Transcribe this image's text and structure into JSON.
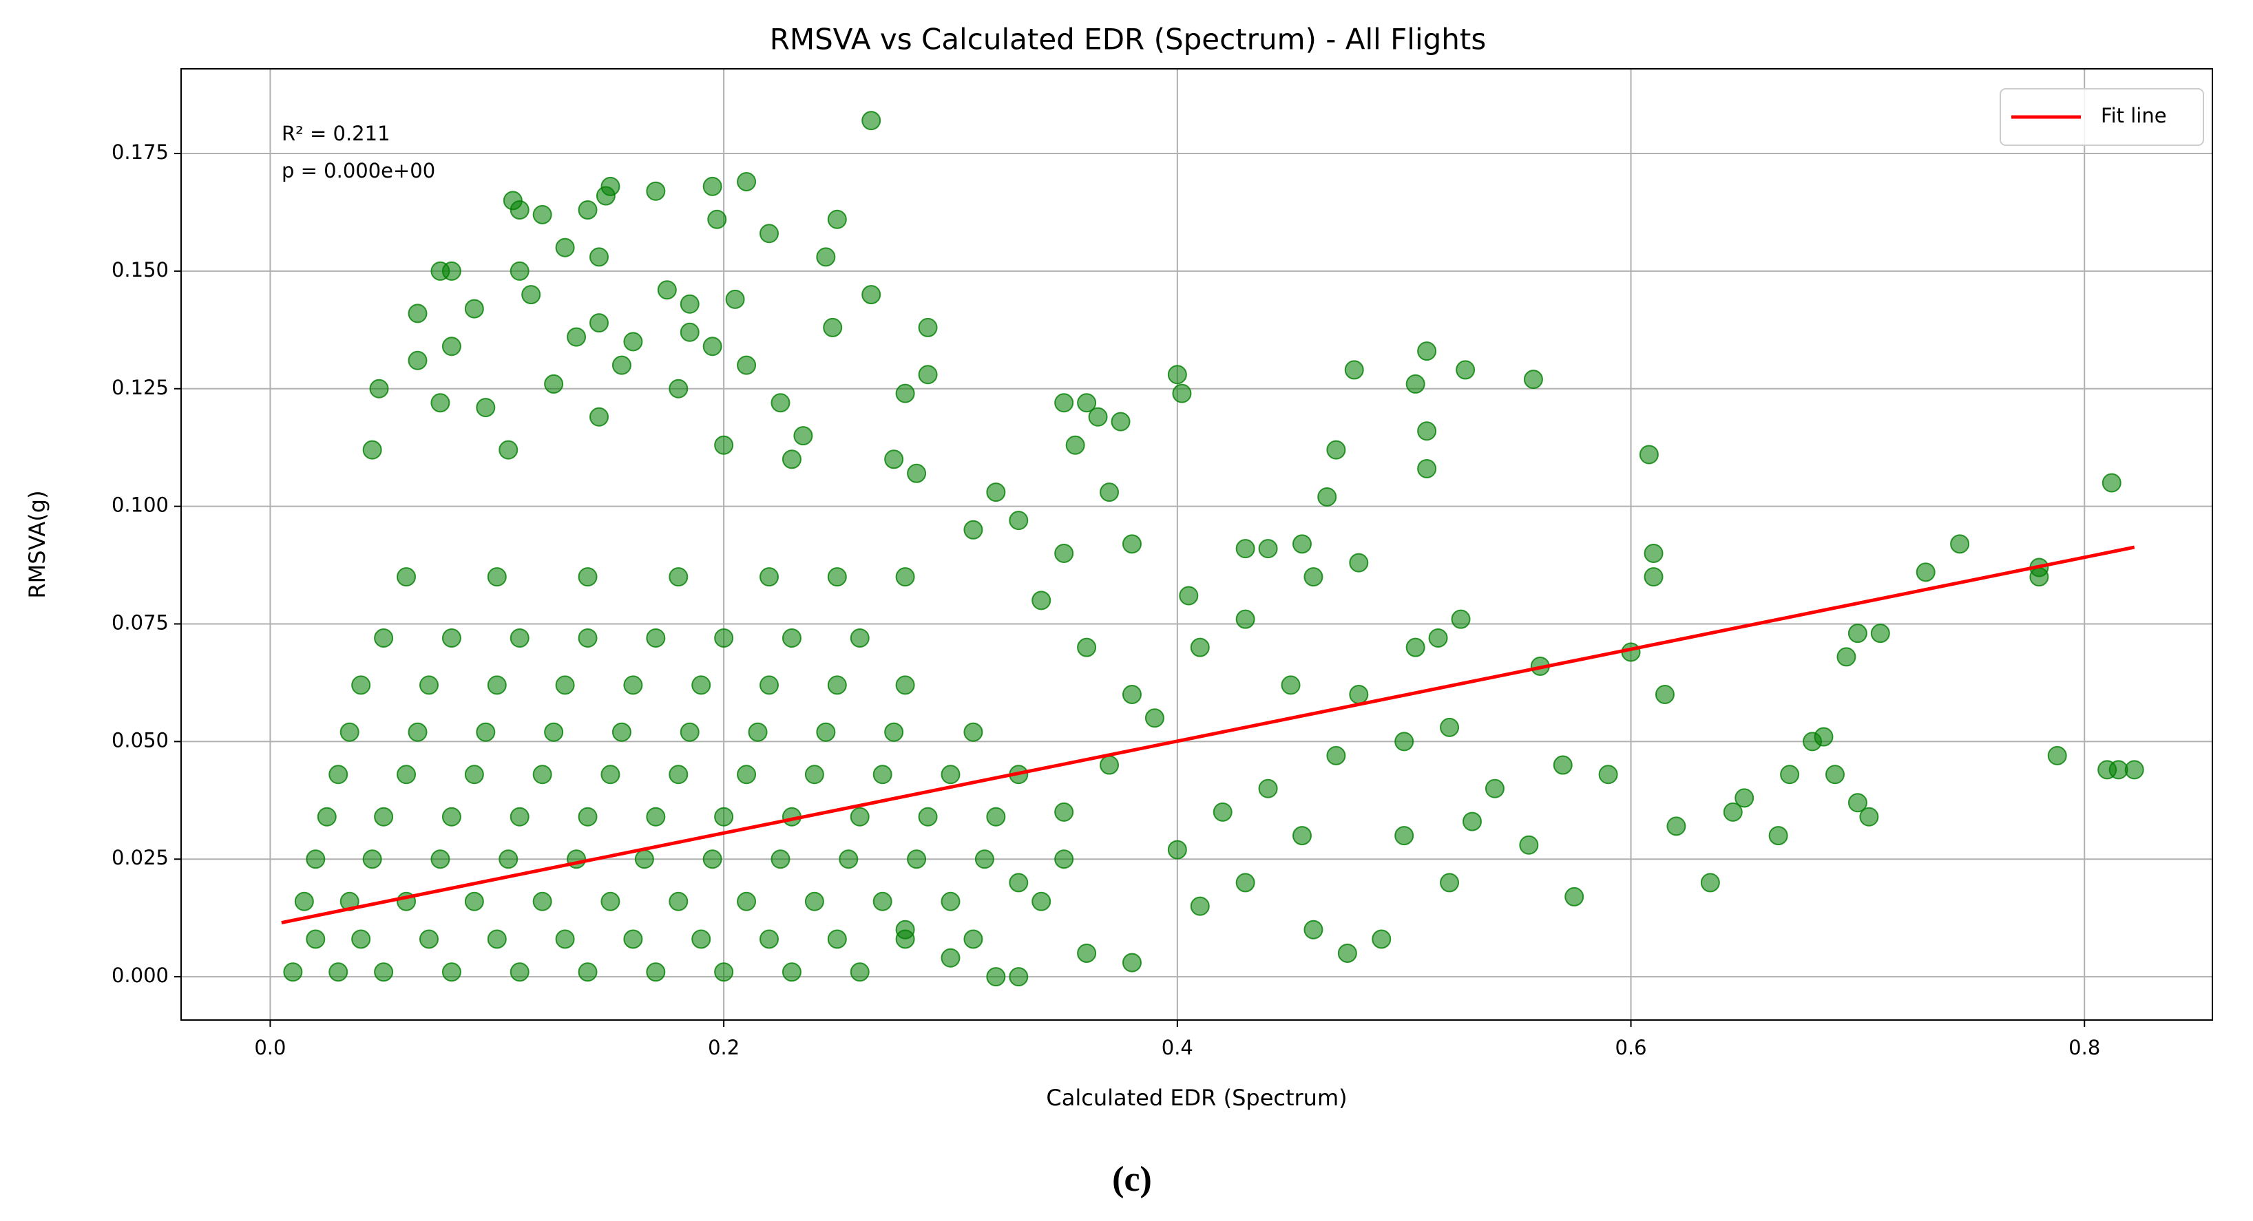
{
  "chart_data": {
    "type": "scatter",
    "title": "RMSVA vs Calculated EDR (Spectrum) - All Flights",
    "xlabel": "Calculated EDR (Spectrum)",
    "ylabel": "RMSVA(g)",
    "annotations": [
      "R² = 0.211",
      "p = 0.000e+00"
    ],
    "xlim": [
      -0.0393,
      0.8564
    ],
    "ylim": [
      -0.0092,
      0.193
    ],
    "xticks": [
      {
        "value": 0,
        "label": "0.0"
      },
      0.2,
      0.4,
      0.6,
      0.8
    ],
    "yticks": [
      {
        "value": 0,
        "label": "0.000"
      },
      0.025,
      {
        "value": 0.05,
        "label": "0.050"
      },
      0.075,
      {
        "value": 0.1,
        "label": "0.100"
      },
      0.125,
      {
        "value": 0.15,
        "label": "0.150"
      },
      0.175
    ],
    "grid": true,
    "legend": "upper right",
    "series": [
      {
        "type": "scatter",
        "color": "green",
        "x": [
          0.265,
          0.107,
          0.11,
          0.12,
          0.15,
          0.148,
          0.17,
          0.195,
          0.21,
          0.197,
          0.22,
          0.25,
          0.14,
          0.13,
          0.145,
          0.245,
          0.265,
          0.175,
          0.11,
          0.075,
          0.08,
          0.115,
          0.09,
          0.065,
          0.185,
          0.205,
          0.29,
          0.248,
          0.145,
          0.135,
          0.16,
          0.185,
          0.195,
          0.08,
          0.065,
          0.155,
          0.21,
          0.29,
          0.048,
          0.125,
          0.18,
          0.075,
          0.145,
          0.28,
          0.225,
          0.095,
          0.105,
          0.045,
          0.2,
          0.235,
          0.23,
          0.275,
          0.285,
          0.32,
          0.36,
          0.35,
          0.365,
          0.355,
          0.375,
          0.37,
          0.4,
          0.402,
          0.478,
          0.505,
          0.51,
          0.527,
          0.557,
          0.51,
          0.47,
          0.51,
          0.608,
          0.466,
          0.61,
          0.61,
          0.812,
          0.745,
          0.78,
          0.78,
          0.73,
          0.788,
          0.815,
          0.822,
          0.81,
          0.7,
          0.71,
          0.695,
          0.685,
          0.68,
          0.67,
          0.69,
          0.7,
          0.705,
          0.665,
          0.635,
          0.65,
          0.645,
          0.62,
          0.615,
          0.6,
          0.59,
          0.575,
          0.56,
          0.555,
          0.52,
          0.515,
          0.525,
          0.505,
          0.48,
          0.46,
          0.43,
          0.44,
          0.455,
          0.43,
          0.41,
          0.405,
          0.45,
          0.48,
          0.5,
          0.47,
          0.44,
          0.42,
          0.4,
          0.43,
          0.46,
          0.475,
          0.49,
          0.52,
          0.54,
          0.57,
          0.53,
          0.5,
          0.455,
          0.41,
          0.39,
          0.38,
          0.36,
          0.35,
          0.33,
          0.31,
          0.38,
          0.34,
          0.37,
          0.35,
          0.33,
          0.32,
          0.33,
          0.3,
          0.28,
          0.36,
          0.38,
          0.01,
          0.03,
          0.05,
          0.08,
          0.11,
          0.14,
          0.17,
          0.2,
          0.23,
          0.26,
          0.02,
          0.04,
          0.07,
          0.1,
          0.13,
          0.16,
          0.19,
          0.22,
          0.25,
          0.28,
          0.31,
          0.015,
          0.035,
          0.06,
          0.09,
          0.12,
          0.15,
          0.18,
          0.21,
          0.24,
          0.27,
          0.3,
          0.34,
          0.02,
          0.045,
          0.075,
          0.105,
          0.135,
          0.165,
          0.195,
          0.225,
          0.255,
          0.285,
          0.315,
          0.35,
          0.025,
          0.05,
          0.08,
          0.11,
          0.14,
          0.17,
          0.2,
          0.23,
          0.26,
          0.29,
          0.32,
          0.03,
          0.06,
          0.09,
          0.12,
          0.15,
          0.18,
          0.21,
          0.24,
          0.27,
          0.3,
          0.33,
          0.035,
          0.065,
          0.095,
          0.125,
          0.155,
          0.185,
          0.215,
          0.245,
          0.275,
          0.31,
          0.04,
          0.07,
          0.1,
          0.13,
          0.16,
          0.19,
          0.22,
          0.25,
          0.28,
          0.05,
          0.08,
          0.11,
          0.14,
          0.17,
          0.2,
          0.23,
          0.26,
          0.06,
          0.1,
          0.14,
          0.18,
          0.22,
          0.25,
          0.28
        ],
        "values": [
          0.182,
          0.165,
          0.163,
          0.162,
          0.168,
          0.166,
          0.167,
          0.168,
          0.169,
          0.161,
          0.158,
          0.161,
          0.163,
          0.155,
          0.153,
          0.153,
          0.145,
          0.146,
          0.15,
          0.15,
          0.15,
          0.145,
          0.142,
          0.141,
          0.143,
          0.144,
          0.138,
          0.138,
          0.139,
          0.136,
          0.135,
          0.137,
          0.134,
          0.134,
          0.131,
          0.13,
          0.13,
          0.128,
          0.125,
          0.126,
          0.125,
          0.122,
          0.119,
          0.124,
          0.122,
          0.121,
          0.112,
          0.112,
          0.113,
          0.115,
          0.11,
          0.11,
          0.107,
          0.103,
          0.122,
          0.122,
          0.119,
          0.113,
          0.118,
          0.103,
          0.128,
          0.124,
          0.129,
          0.126,
          0.133,
          0.129,
          0.127,
          0.116,
          0.112,
          0.108,
          0.111,
          0.102,
          0.09,
          0.085,
          0.105,
          0.092,
          0.087,
          0.085,
          0.086,
          0.047,
          0.044,
          0.044,
          0.044,
          0.073,
          0.073,
          0.068,
          0.051,
          0.05,
          0.043,
          0.043,
          0.037,
          0.034,
          0.03,
          0.02,
          0.038,
          0.035,
          0.032,
          0.06,
          0.069,
          0.043,
          0.017,
          0.066,
          0.028,
          0.053,
          0.072,
          0.076,
          0.07,
          0.088,
          0.085,
          0.091,
          0.091,
          0.092,
          0.076,
          0.07,
          0.081,
          0.062,
          0.06,
          0.05,
          0.047,
          0.04,
          0.035,
          0.027,
          0.02,
          0.01,
          0.005,
          0.008,
          0.02,
          0.04,
          0.045,
          0.033,
          0.03,
          0.03,
          0.015,
          0.055,
          0.06,
          0.07,
          0.09,
          0.097,
          0.095,
          0.092,
          0.08,
          0.045,
          0.035,
          0.02,
          0,
          0,
          0.004,
          0.01,
          0.005,
          0.003,
          0.001,
          0.001,
          0.001,
          0.001,
          0.001,
          0.001,
          0.001,
          0.001,
          0.001,
          0.001,
          0.008,
          0.008,
          0.008,
          0.008,
          0.008,
          0.008,
          0.008,
          0.008,
          0.008,
          0.008,
          0.008,
          0.016,
          0.016,
          0.016,
          0.016,
          0.016,
          0.016,
          0.016,
          0.016,
          0.016,
          0.016,
          0.016,
          0.016,
          0.025,
          0.025,
          0.025,
          0.025,
          0.025,
          0.025,
          0.025,
          0.025,
          0.025,
          0.025,
          0.025,
          0.025,
          0.034,
          0.034,
          0.034,
          0.034,
          0.034,
          0.034,
          0.034,
          0.034,
          0.034,
          0.034,
          0.034,
          0.043,
          0.043,
          0.043,
          0.043,
          0.043,
          0.043,
          0.043,
          0.043,
          0.043,
          0.043,
          0.043,
          0.052,
          0.052,
          0.052,
          0.052,
          0.052,
          0.052,
          0.052,
          0.052,
          0.052,
          0.052,
          0.062,
          0.062,
          0.062,
          0.062,
          0.062,
          0.062,
          0.062,
          0.062,
          0.062,
          0.072,
          0.072,
          0.072,
          0.072,
          0.072,
          0.072,
          0.072,
          0.072,
          0.085,
          0.085,
          0.085,
          0.085,
          0.085,
          0.085,
          0.085
        ]
      },
      {
        "type": "line",
        "name": "Fit line",
        "color": "red",
        "x": [
          0.005,
          0.822
        ],
        "values": [
          0.0115,
          0.0913
        ]
      }
    ]
  },
  "caption": "(c)"
}
